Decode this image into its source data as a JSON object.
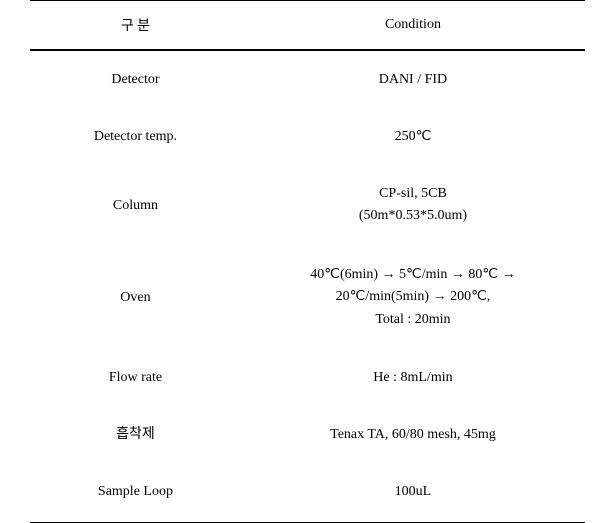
{
  "table": {
    "headers": {
      "left": "구 분",
      "right": "Condition"
    },
    "rows": [
      {
        "left": "Detector",
        "right": "DANI / FID"
      },
      {
        "left": "Detector temp.",
        "right": "250℃"
      },
      {
        "left": "Column",
        "right": "CP-sil, 5CB\n(50m*0.53*5.0um)"
      },
      {
        "left": "Oven",
        "right": "40℃(6min) → 5℃/min → 80℃ →\n20℃/min(5min) → 200℃,\nTotal : 20min"
      },
      {
        "left": "Flow rate",
        "right": "He : 8mL/min"
      },
      {
        "left": "흡착제",
        "right": "Tenax TA, 60/80 mesh, 45mg"
      },
      {
        "left": "Sample Loop",
        "right": "100uL"
      }
    ],
    "colors": {
      "text": "#000000",
      "background": "#ffffff",
      "border": "#000000"
    },
    "fontsize": 14
  }
}
